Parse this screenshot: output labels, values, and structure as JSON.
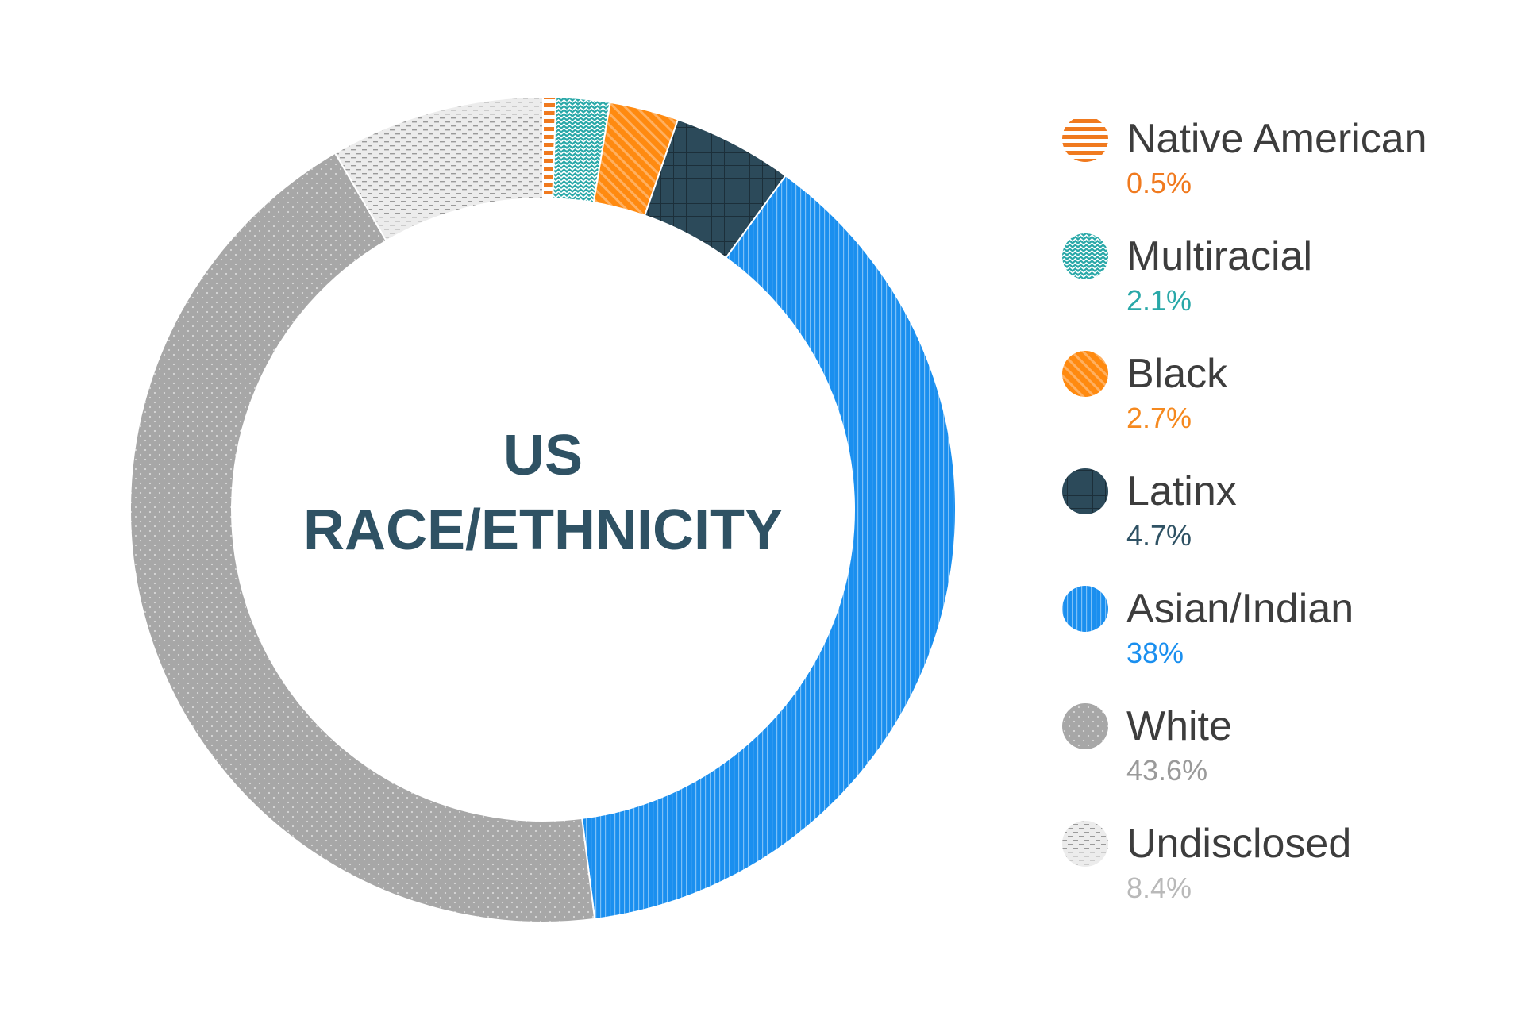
{
  "chart_data": {
    "type": "pie",
    "donut": true,
    "title": "US RACE/ETHNICITY",
    "title_lines": [
      "US",
      "RACE/ETHNICITY"
    ],
    "legend_position": "right",
    "slices": [
      {
        "label": "Native American",
        "value": 0.5,
        "display": "0.5%",
        "color": "#f07a1f",
        "value_color": "#f07a1f",
        "pattern": "hstripes"
      },
      {
        "label": "Multiracial",
        "value": 2.1,
        "display": "2.1%",
        "color": "#29a8a8",
        "value_color": "#29a8a8",
        "pattern": "zigzag"
      },
      {
        "label": "Black",
        "value": 2.7,
        "display": "2.7%",
        "color": "#ff8a10",
        "value_color": "#f5891f",
        "pattern": "diagonal"
      },
      {
        "label": "Latinx",
        "value": 4.7,
        "display": "4.7%",
        "color": "#2c4a5a",
        "value_color": "#2f5264",
        "pattern": "grid"
      },
      {
        "label": "Asian/Indian",
        "value": 38,
        "display": "38%",
        "color": "#1a8fef",
        "value_color": "#1a8fef",
        "pattern": "vstripes"
      },
      {
        "label": "White",
        "value": 43.6,
        "display": "43.6%",
        "color": "#a7a7a7",
        "value_color": "#9a9a9a",
        "pattern": "dots"
      },
      {
        "label": "Undisclosed",
        "value": 8.4,
        "display": "8.4%",
        "color": "#ececec",
        "value_color": "#b9b9b9",
        "pattern": "dashes"
      }
    ]
  }
}
